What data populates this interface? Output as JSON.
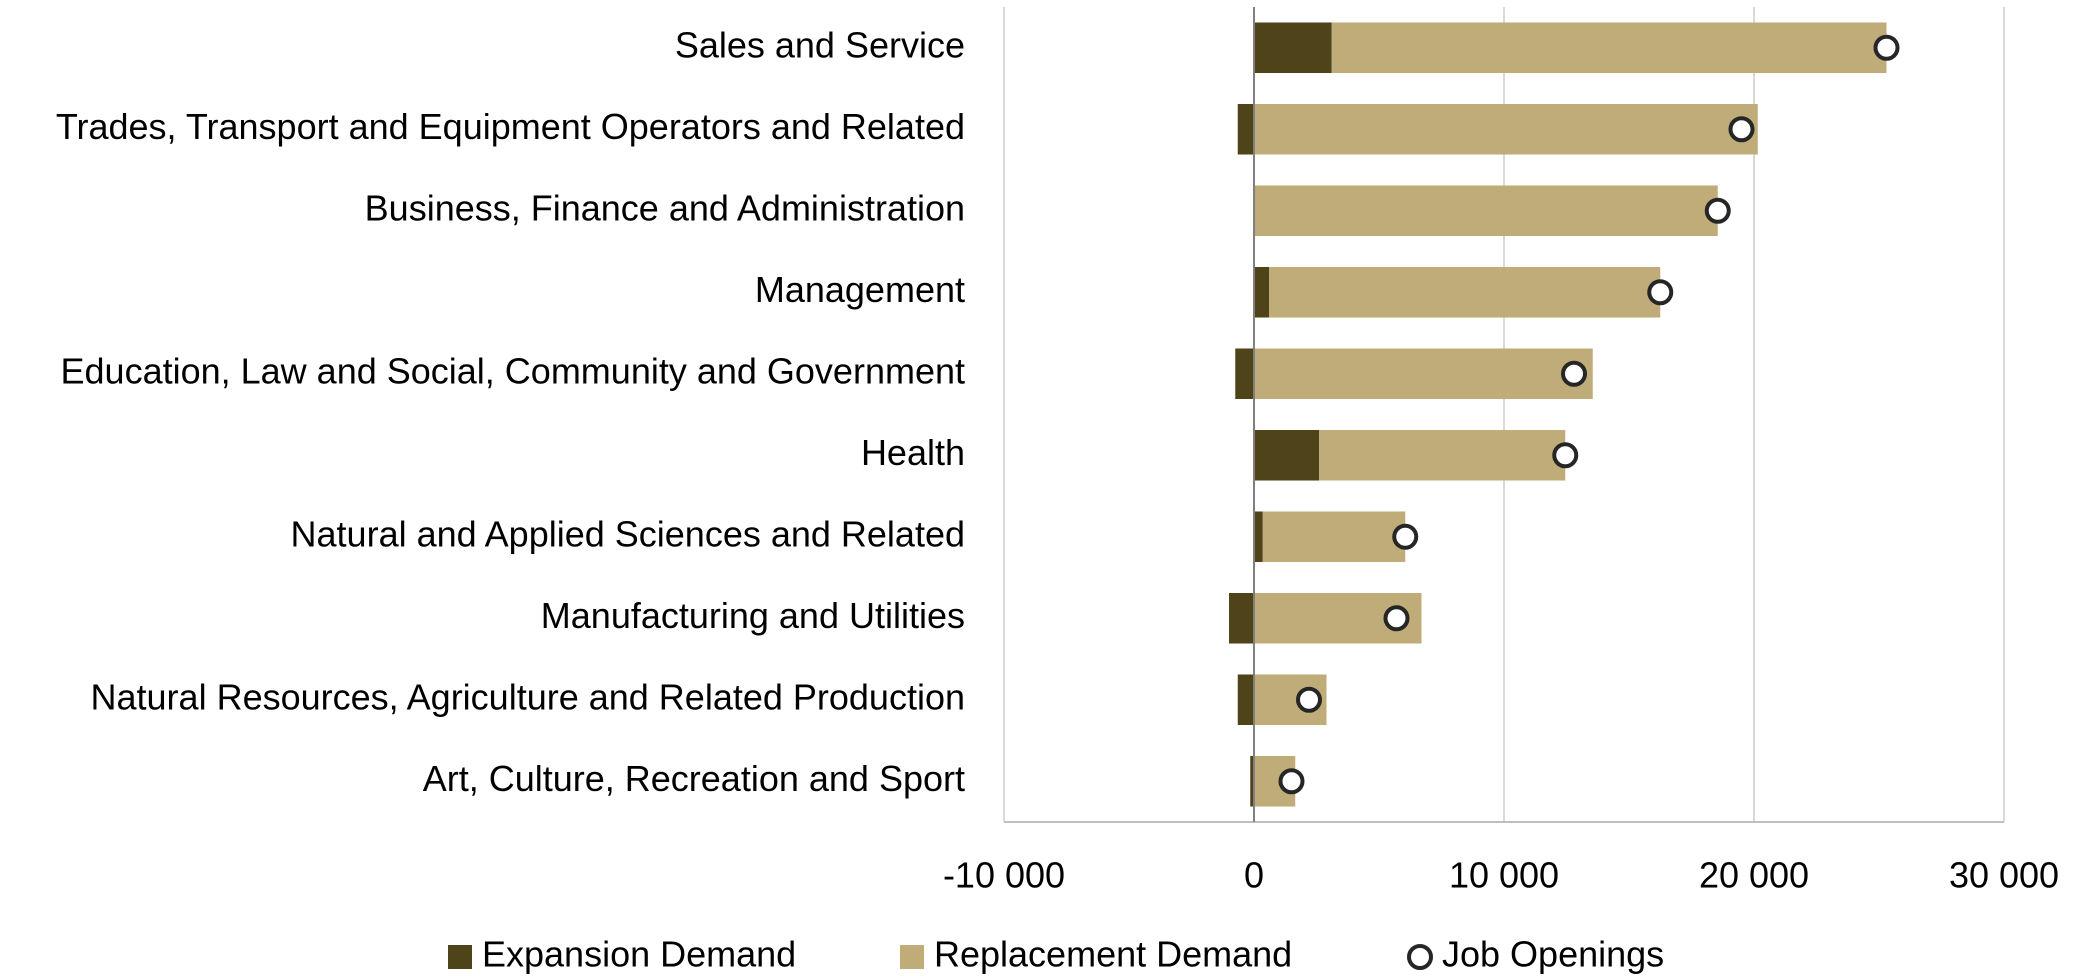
{
  "chart_data": {
    "type": "bar",
    "orientation": "horizontal",
    "stacked": true,
    "categories": [
      "Sales and Service",
      "Trades, Transport and Equipment Operators and Related",
      "Business, Finance and Administration",
      "Management",
      "Education, Law and Social, Community and Government",
      "Health",
      "Natural and Applied Sciences and Related",
      "Manufacturing and Utilities",
      "Natural Resources, Agriculture and Related Production",
      "Art, Culture, Recreation and Sport"
    ],
    "series": [
      {
        "name": "Expansion Demand",
        "color": "#4e4319",
        "values": [
          3100,
          -650,
          50,
          600,
          -750,
          2600,
          350,
          -1000,
          -650,
          -150
        ]
      },
      {
        "name": "Replacement Demand",
        "color": "#bfac79",
        "values": [
          22200,
          20150,
          18500,
          15650,
          13550,
          9850,
          5700,
          6700,
          2900,
          1650
        ]
      },
      {
        "name": "Job Openings",
        "type": "scatter",
        "color": "#ffffff",
        "values": [
          25300,
          19500,
          18550,
          16250,
          12800,
          12450,
          6050,
          5700,
          2200,
          1500
        ]
      }
    ],
    "xlim": [
      -10000,
      30000
    ],
    "xticks": [
      {
        "value": -10000,
        "label": "-10 000"
      },
      0,
      {
        "value": 10000,
        "label": "10 000"
      },
      {
        "value": 20000,
        "label": "20 000"
      },
      {
        "value": 30000,
        "label": "30 000"
      }
    ],
    "grid": true,
    "legend": "bottom"
  }
}
